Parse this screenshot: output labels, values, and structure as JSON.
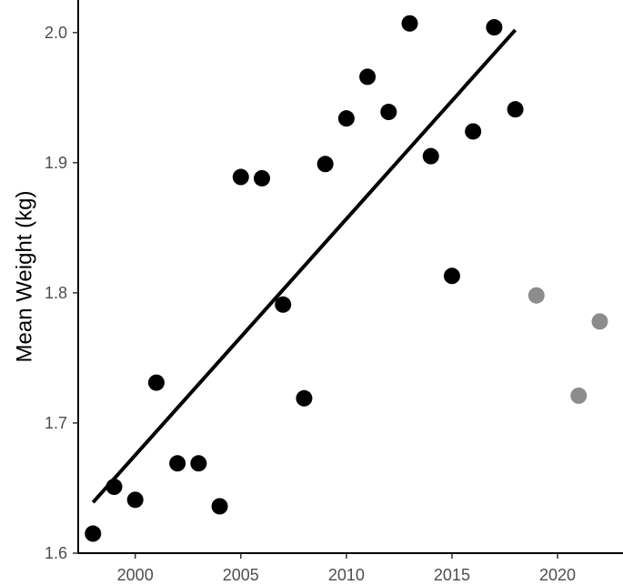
{
  "chart_data": {
    "type": "scatter",
    "title": "",
    "xlabel": "",
    "ylabel": "Mean Weight (kg)",
    "xlim": [
      1997.3,
      2023.1
    ],
    "ylim": [
      1.6,
      2.025
    ],
    "x_ticks": [
      "2000",
      "2005",
      "2010",
      "2015",
      "2020"
    ],
    "y_ticks": [
      "1.6",
      "1.7",
      "1.8",
      "1.9",
      "2.0"
    ],
    "grid": false,
    "legend": "none",
    "series": [
      {
        "color": "#000000",
        "points": [
          {
            "x": 1998,
            "y": 1.615
          },
          {
            "x": 1999,
            "y": 1.651
          },
          {
            "x": 2000,
            "y": 1.641
          },
          {
            "x": 2001,
            "y": 1.731
          },
          {
            "x": 2002,
            "y": 1.669
          },
          {
            "x": 2003,
            "y": 1.669
          },
          {
            "x": 2004,
            "y": 1.636
          },
          {
            "x": 2005,
            "y": 1.889
          },
          {
            "x": 2006,
            "y": 1.888
          },
          {
            "x": 2007,
            "y": 1.791
          },
          {
            "x": 2008,
            "y": 1.719
          },
          {
            "x": 2009,
            "y": 1.899
          },
          {
            "x": 2010,
            "y": 1.934
          },
          {
            "x": 2011,
            "y": 1.966
          },
          {
            "x": 2012,
            "y": 1.939
          },
          {
            "x": 2013,
            "y": 2.007
          },
          {
            "x": 2014,
            "y": 1.905
          },
          {
            "x": 2015,
            "y": 1.813
          },
          {
            "x": 2016,
            "y": 1.924
          },
          {
            "x": 2017,
            "y": 2.004
          },
          {
            "x": 2018,
            "y": 1.941
          }
        ]
      },
      {
        "color": "#8c8c8c",
        "points": [
          {
            "x": 2019,
            "y": 1.798
          },
          {
            "x": 2021,
            "y": 1.721
          },
          {
            "x": 2022,
            "y": 1.778
          }
        ]
      }
    ],
    "trend_line": {
      "color": "#000000",
      "start": {
        "x": 1998,
        "y": 1.639
      },
      "end": {
        "x": 2018,
        "y": 2.002
      }
    }
  }
}
